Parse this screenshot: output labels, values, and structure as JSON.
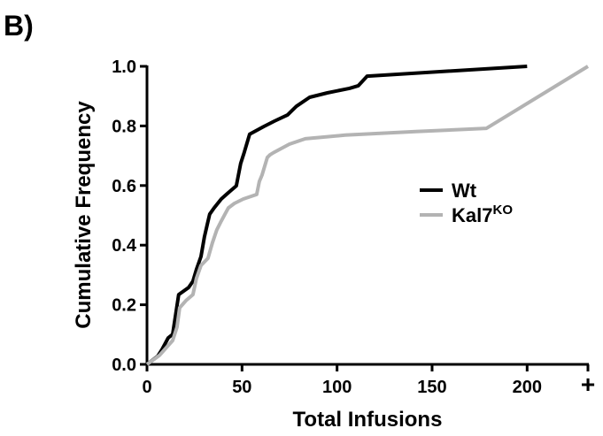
{
  "chart_data": {
    "type": "line",
    "panel_label": "B)",
    "xlabel": "Total Infusions",
    "ylabel": "Cumulative Frequency",
    "xlim": [
      0,
      232
    ],
    "ylim": [
      0,
      1
    ],
    "xticks": [
      0,
      50,
      100,
      150,
      200,
      {
        "value": 232,
        "label": "+"
      }
    ],
    "yticks": [
      {
        "value": 0,
        "label": "0.0"
      },
      0.2,
      0.4,
      0.6,
      0.8,
      {
        "value": 1,
        "label": "1.0"
      }
    ],
    "legend": "right",
    "series": [
      {
        "name": "Wt",
        "color": "#000000",
        "x": [
          0,
          5.6,
          7.9,
          11.2,
          13.5,
          16.7,
          21.9,
          24.2,
          26.0,
          28.4,
          30.2,
          31.6,
          33.0,
          35.3,
          39.1,
          42.8,
          47.0,
          49.3,
          51.2,
          54.0,
          61.4,
          67.0,
          74.0,
          78.6,
          85.6,
          94.9,
          106.5,
          111.2,
          115.8,
          200
        ],
        "values": [
          0,
          0.027,
          0.05,
          0.089,
          0.101,
          0.234,
          0.258,
          0.279,
          0.318,
          0.362,
          0.427,
          0.466,
          0.504,
          0.525,
          0.555,
          0.576,
          0.599,
          0.674,
          0.712,
          0.772,
          0.798,
          0.816,
          0.837,
          0.866,
          0.896,
          0.911,
          0.926,
          0.935,
          0.967,
          1.0
        ]
      },
      {
        "name": "Kal7",
        "name_sup": "KO",
        "color": "#b3b3b3",
        "x": [
          0,
          6.5,
          13.5,
          15.8,
          17.2,
          20.5,
          24.2,
          26.0,
          28.4,
          32.1,
          34.4,
          36.7,
          39.1,
          42.8,
          46.0,
          50.7,
          57.7,
          59.1,
          60.5,
          63.3,
          64.7,
          67.0,
          74.9,
          83.3,
          104.2,
          141.4,
          178.6,
          232
        ],
        "values": [
          0,
          0.03,
          0.08,
          0.125,
          0.19,
          0.214,
          0.234,
          0.288,
          0.332,
          0.356,
          0.407,
          0.451,
          0.481,
          0.525,
          0.54,
          0.555,
          0.57,
          0.614,
          0.635,
          0.694,
          0.703,
          0.712,
          0.739,
          0.757,
          0.769,
          0.781,
          0.792,
          1.0
        ]
      }
    ]
  }
}
